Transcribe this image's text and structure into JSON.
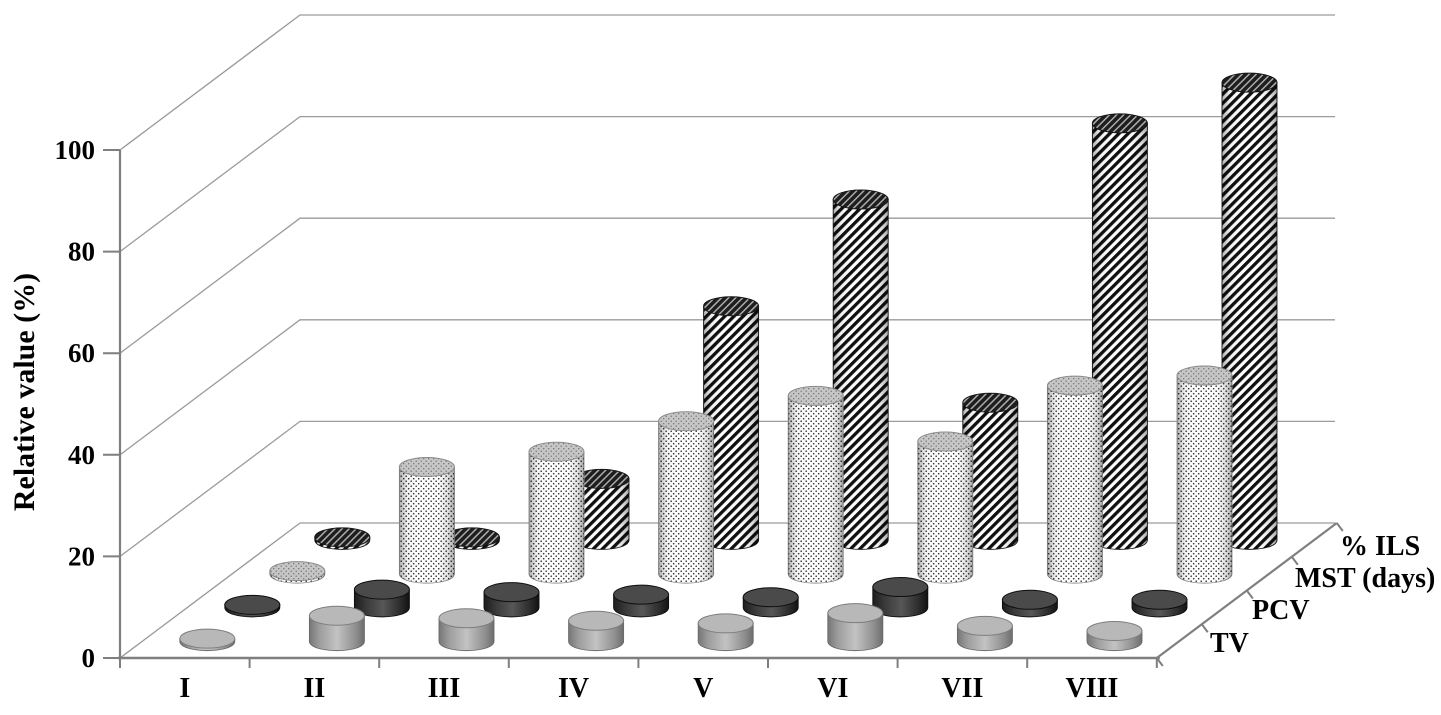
{
  "chart_data": {
    "type": "bar",
    "subtype": "3d-cylinder-bar-chart",
    "title": "",
    "ylabel": "Relative value (%)",
    "ylim": [
      0,
      100
    ],
    "yticks": [
      0,
      20,
      40,
      60,
      80,
      100
    ],
    "grid": true,
    "legend_position": "depth-axis-right",
    "categories": [
      "I",
      "II",
      "III",
      "IV",
      "V",
      "VI",
      "VII",
      "VIII"
    ],
    "series": [
      {
        "key": "tv",
        "name": "TV",
        "appearance": "solid-gray-cylinder",
        "color": "#a8a8a8",
        "values": [
          0.5,
          5,
          4.5,
          4,
          3.5,
          5.5,
          3,
          2
        ]
      },
      {
        "key": "pcv",
        "name": "PCV",
        "appearance": "solid-dark-cylinder",
        "color": "#3d3d3d",
        "values": [
          0.5,
          3.5,
          3,
          2.5,
          2,
          4,
          1.5,
          1.5
        ]
      },
      {
        "key": "mst",
        "name": "MST (days)",
        "appearance": "stippled-dot-cylinder",
        "color": "#ffffff",
        "values": [
          0.5,
          21,
          24,
          30,
          35,
          26,
          37,
          39
        ]
      },
      {
        "key": "ils",
        "name": "% ILS",
        "appearance": "diagonal-hatch-cylinder",
        "color": "#1a1a1a",
        "values": [
          0.5,
          0.5,
          12,
          46,
          67,
          27,
          82,
          90
        ]
      }
    ],
    "depth_axis_labels_front_to_back": [
      "TV",
      "PCV",
      "MST (days)",
      "% ILS"
    ],
    "axis_color": "#7f7f7f",
    "grid_color": "#9b9b9b"
  }
}
